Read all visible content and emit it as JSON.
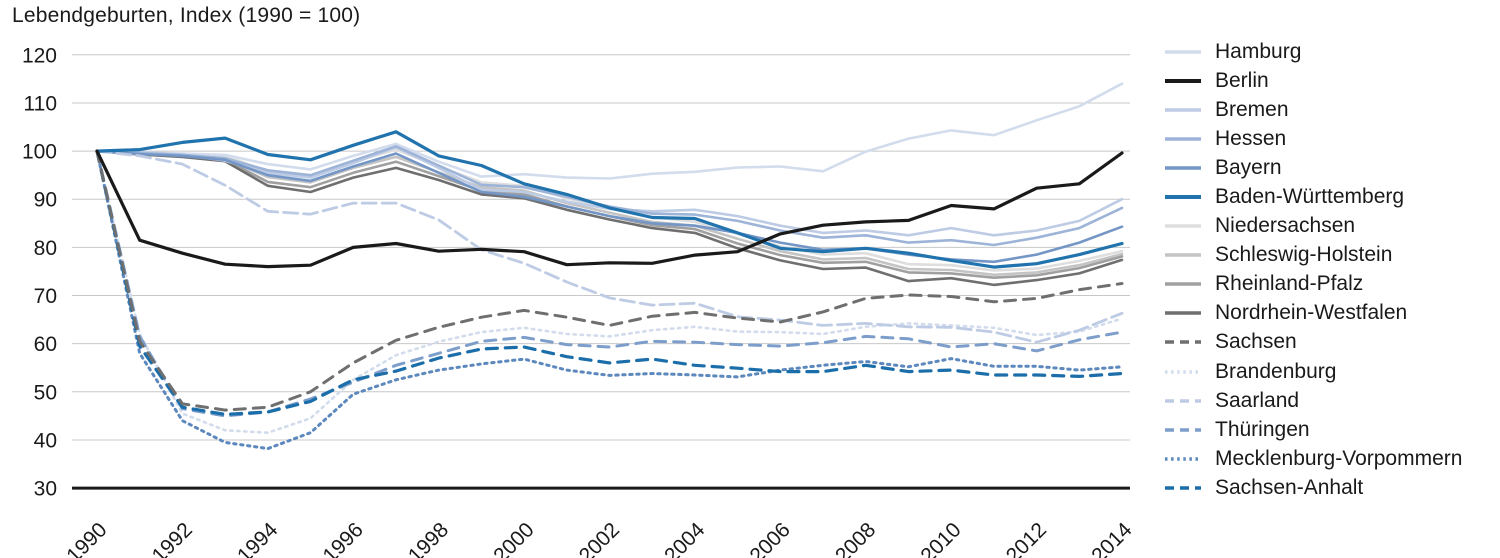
{
  "title": "Lebendgeburten, Index (1990 = 100)",
  "colors": {
    "background": "#ffffff",
    "grid": "#c8c8c8",
    "axis": "#1a1a1a",
    "text": "#1a1a1a"
  },
  "chart_data": {
    "type": "line",
    "title": "Lebendgeburten, Index (1990 = 100)",
    "xlabel": "",
    "ylabel": "",
    "x": [
      1990,
      1991,
      1992,
      1993,
      1994,
      1995,
      1996,
      1997,
      1998,
      1999,
      2000,
      2001,
      2002,
      2003,
      2004,
      2005,
      2006,
      2007,
      2008,
      2009,
      2010,
      2011,
      2012,
      2013,
      2014
    ],
    "x_tick_labels": [
      "1990",
      "1992",
      "1994",
      "1996",
      "1998",
      "2000",
      "2002",
      "2004",
      "2006",
      "2008",
      "2010",
      "2012",
      "2014"
    ],
    "y_ticks": [
      120,
      110,
      100,
      90,
      80,
      70,
      60,
      50,
      40,
      30
    ],
    "ylim": [
      30,
      120
    ],
    "grid": "horizontal",
    "legend_position": "right",
    "series": [
      {
        "name": "Hamburg",
        "color": "#d2dcec",
        "dash": "solid",
        "values": [
          100,
          99.8,
          99.5,
          99.2,
          97.3,
          96.2,
          99,
          101.5,
          97.8,
          94.7,
          95.2,
          94.5,
          94.3,
          95.3,
          95.7,
          96.6,
          96.8,
          95.8,
          99.9,
          102.6,
          104.3,
          103.3,
          106.4,
          109.3,
          114
        ]
      },
      {
        "name": "Berlin",
        "color": "#1a1a1a",
        "dash": "solid",
        "values": [
          100,
          81.5,
          78.8,
          76.5,
          76,
          76.3,
          80,
          80.8,
          79.2,
          79.6,
          79.1,
          76.4,
          76.8,
          76.7,
          78.4,
          79.1,
          82.8,
          84.6,
          85.3,
          85.6,
          88.7,
          88,
          92.3,
          93.2,
          99.6
        ]
      },
      {
        "name": "Bremen",
        "color": "#bdcbe4",
        "dash": "solid",
        "values": [
          100,
          99.8,
          99.3,
          98,
          95.5,
          94.5,
          97.5,
          100.8,
          96.5,
          92,
          91.5,
          89.5,
          88,
          87.5,
          87.8,
          86.5,
          84.5,
          83,
          83.5,
          82.5,
          84,
          82.5,
          83.5,
          85.5,
          90
        ]
      },
      {
        "name": "Hessen",
        "color": "#9db4d8",
        "dash": "solid",
        "values": [
          100,
          99.6,
          99.2,
          98.5,
          96,
          95,
          98,
          101,
          97,
          93,
          92.5,
          90.5,
          88.5,
          87,
          86.8,
          85.5,
          83.5,
          82,
          82.5,
          81,
          81.5,
          80.5,
          82,
          84,
          88.2
        ]
      },
      {
        "name": "Bayern",
        "color": "#7396c6",
        "dash": "solid",
        "values": [
          100,
          99.4,
          99,
          98.2,
          95,
          93.8,
          96.8,
          99.5,
          95.5,
          91.5,
          90.5,
          88.5,
          86.5,
          85,
          84.5,
          83,
          81,
          79.5,
          79.8,
          78.5,
          77.5,
          77,
          78.5,
          81,
          84.3
        ]
      },
      {
        "name": "Baden-Württemberg",
        "color": "#2173ae",
        "dash": "solid",
        "values": [
          100,
          100.3,
          101.8,
          102.7,
          99.3,
          98.2,
          101.2,
          104,
          99,
          97,
          93.2,
          91,
          88.2,
          86.2,
          86,
          83,
          79.8,
          79.1,
          79.8,
          78.8,
          77.3,
          75.9,
          76.6,
          78.5,
          80.8
        ]
      },
      {
        "name": "Niedersachsen",
        "color": "#dedede",
        "dash": "solid",
        "values": [
          100,
          99.7,
          99.4,
          99,
          95.8,
          94.8,
          97.8,
          100.3,
          96.8,
          93.5,
          92.8,
          90.2,
          88.2,
          86.3,
          85.3,
          82.8,
          80.2,
          78.5,
          78.8,
          76.5,
          76.3,
          75.2,
          75.6,
          77.2,
          79.2
        ]
      },
      {
        "name": "Schleswig-Holstein",
        "color": "#c4c4c4",
        "dash": "solid",
        "values": [
          100,
          99.6,
          99.2,
          98.5,
          94.6,
          93.5,
          96.5,
          98.8,
          95.6,
          92.5,
          91.8,
          89.2,
          87.2,
          85.3,
          84.5,
          81.8,
          79.2,
          77.5,
          77.8,
          75.5,
          75.3,
          74.3,
          74.8,
          76.3,
          78.6
        ]
      },
      {
        "name": "Rheinland-Pfalz",
        "color": "#a0a0a0",
        "dash": "solid",
        "values": [
          100,
          99.5,
          99,
          98.2,
          93.6,
          92.5,
          95.5,
          97.8,
          94.8,
          91.8,
          91,
          88.5,
          86.5,
          84.6,
          83.8,
          80.8,
          78.4,
          76.8,
          77,
          74.8,
          74.6,
          73.7,
          74.2,
          75.7,
          78.1
        ]
      },
      {
        "name": "Nordrhein-Westfalen",
        "color": "#6f6f6f",
        "dash": "solid",
        "values": [
          100,
          99.3,
          98.8,
          97.9,
          92.8,
          91.5,
          94.5,
          96.5,
          94,
          91,
          90.2,
          87.8,
          85.8,
          84,
          83,
          79.8,
          77.3,
          75.5,
          75.8,
          73,
          73.6,
          72.2,
          73.2,
          74.6,
          77.4
        ]
      },
      {
        "name": "Sachsen",
        "color": "#6f6f6f",
        "dash": "dashed",
        "values": [
          100,
          60.5,
          47.5,
          46.2,
          46.8,
          50,
          56,
          60.7,
          63.4,
          65.5,
          66.9,
          65.5,
          63.8,
          65.7,
          66.5,
          65.3,
          64.5,
          66.6,
          69.4,
          70.1,
          69.8,
          68.7,
          69.4,
          71.2,
          72.5
        ]
      },
      {
        "name": "Brandenburg",
        "color": "#d2dcec",
        "dash": "dotted",
        "values": [
          100,
          62,
          45.5,
          42,
          41.5,
          44.5,
          52.5,
          57.6,
          60.4,
          62.4,
          63.3,
          62,
          61.5,
          62.8,
          63.5,
          62.5,
          62.4,
          62,
          63.5,
          64.2,
          63.8,
          63.3,
          61.8,
          62.5,
          65.2
        ]
      },
      {
        "name": "Saarland",
        "color": "#bdcbe4",
        "dash": "dashed",
        "values": [
          100,
          99,
          97.3,
          92.9,
          87.5,
          86.9,
          89.2,
          89.2,
          85.7,
          79.5,
          76.7,
          72.8,
          69.5,
          68,
          68.4,
          65.6,
          64.9,
          63.8,
          64.2,
          63.5,
          63.4,
          62.4,
          60.3,
          62.8,
          66.3
        ]
      },
      {
        "name": "Thüringen",
        "color": "#7d9ecb",
        "dash": "dashed",
        "values": [
          100,
          61.5,
          46.5,
          45,
          45.8,
          48.5,
          52,
          55.5,
          58,
          60.5,
          61.3,
          59.8,
          59.3,
          60.5,
          60.3,
          59.8,
          59.5,
          60.2,
          61.5,
          61,
          59.3,
          60,
          58.5,
          60.8,
          62.4
        ]
      },
      {
        "name": "Mecklenburg-Vorpommern",
        "color": "#5c88bd",
        "dash": "dotted",
        "values": [
          100,
          58,
          44,
          39.5,
          38.2,
          41.5,
          49.5,
          52.5,
          54.5,
          55.8,
          56.8,
          54.5,
          53.4,
          53.8,
          53.5,
          53.1,
          54.5,
          55.5,
          56.3,
          55.2,
          56.9,
          55.3,
          55.3,
          54.5,
          55.2
        ]
      },
      {
        "name": "Sachsen-Anhalt",
        "color": "#1b6ea9",
        "dash": "dashed",
        "values": [
          100,
          59.5,
          46.8,
          45.3,
          45.8,
          48,
          52.5,
          54.3,
          57,
          58.9,
          59.3,
          57.3,
          56,
          56.8,
          55.5,
          54.9,
          54.2,
          54.2,
          55.5,
          54.2,
          54.5,
          53.5,
          53.5,
          53.2,
          53.8
        ]
      }
    ]
  }
}
